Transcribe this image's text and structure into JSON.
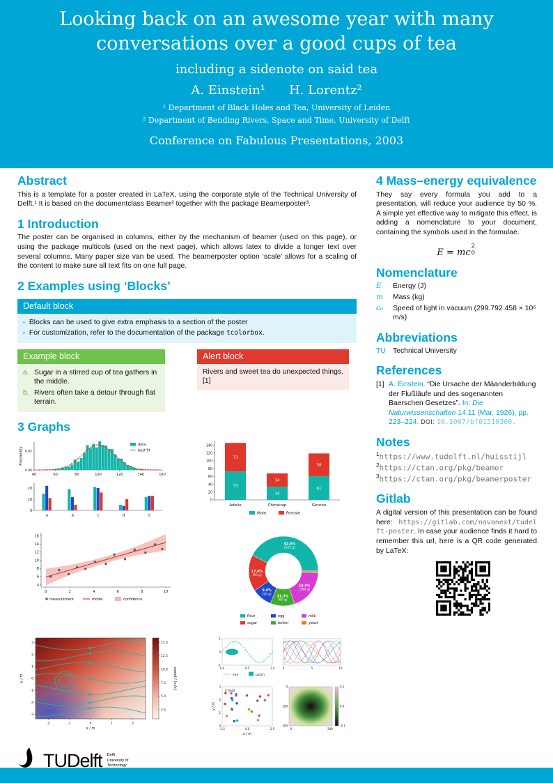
{
  "colors": {
    "accent": "#00A6D6",
    "green": "#6CC24A",
    "red": "#E0392E",
    "teal_plot": "#14B5A9",
    "blue_plot": "#2049C9",
    "red_plot": "#E0362C"
  },
  "header": {
    "title_line1": "Looking back on an awesome year with many",
    "title_line2": "conversations over a good cups of tea",
    "subtitle": "including a sidenote on said tea",
    "author1": "A. Einstein¹",
    "author2": "H. Lorentz²",
    "affiliation1": "¹ Department of Black Holes and Tea, University of Leiden",
    "affiliation2": "² Department of Bending Rivers, Space and Time, University of Delft",
    "conference": "Conference on Fabulous Presentations, 2003"
  },
  "sections": {
    "abstract": {
      "heading": "Abstract",
      "body": "This is a template for a poster created in LaTeX, using the corporate style of the Technical University of Delft.¹ It is based on the documentclass Beamer² together with the package Beamerposter³."
    },
    "introduction": {
      "heading": "1 Introduction",
      "body": "The poster can be organised in columns, either by the mechanism of beamer (used on this page), or using the package multicols (used on the next page), which allows latex to divide a longer text over several columns. Many paper size van be used. The beamerposter option ‘scale’ allows for a scaling of the content to make sure all text fits on one full page."
    },
    "blocks": {
      "heading": "2 Examples using ‘Blocks’",
      "default_block": {
        "title": "Default block",
        "item1": "Blocks can be used to give extra emphasis to a section of the poster",
        "item2_pre": "For customization, refer to the documentation of the package ",
        "item2_code": "tcolorbox",
        "item2_post": "."
      },
      "example_block": {
        "title": "Example block",
        "item_a_label": "a.",
        "item_a": "Sugar in a stirred cup of tea gathers in the middle.",
        "item_b_label": "b.",
        "item_b": "Rivers often take a detour through flat terrain."
      },
      "alert_block": {
        "title": "Alert block",
        "body": "Rivers and sweet tea do unexpected things.[1]"
      }
    },
    "graphs": {
      "heading": "3 Graphs"
    },
    "mass_energy": {
      "heading": "4 Mass–energy equivalence",
      "body": "They say every formula you add to a presentation, will reduce your audience by 50 %. A simple yet effective way to mitigate this effect, is adding a nomenclature to your document, containing the symbols used in the formulae.",
      "formula_lhs": "E = mc",
      "formula_sup": "2",
      "formula_sub": "0"
    },
    "nomenclature": {
      "heading": "Nomenclature",
      "rows": [
        {
          "symbol": "E",
          "desc": "Energy (J)"
        },
        {
          "symbol": "m",
          "desc": "Mass (kg)"
        },
        {
          "symbol": "c₀",
          "desc": "Speed of light in vacuum (299.792 458 × 10⁶ m/s)"
        }
      ]
    },
    "abbreviations": {
      "heading": "Abbreviations",
      "rows": [
        {
          "abbr": "TU",
          "desc": "Technical University"
        }
      ]
    },
    "references": {
      "heading": "References",
      "label": "[1]",
      "author": "A. Einstein.",
      "title": "“Die Ursache der Mäanderbildung der Flußläufe und des sogenannten Baerschen Gesetzes”.",
      "in_word": "In:",
      "journal": "Die Naturwissenschaften",
      "detail": "14.11 (Mar. 1926), pp. 223–224.",
      "doi_label": "DOI:",
      "doi": "10.1007/bf01510300."
    },
    "notes": {
      "heading": "Notes",
      "items": [
        {
          "sup": "1",
          "url": "https://www.tudelft.nl/huisstijl"
        },
        {
          "sup": "2",
          "url": "https://ctan.org/pkg/beamer"
        },
        {
          "sup": "3",
          "url": "https://ctan.org/pkg/beamerposter"
        }
      ]
    },
    "gitlab": {
      "heading": "Gitlab",
      "pre": "A digital version of this presentation can be found here: ",
      "url": "https://gitlab.com/novanext/tudelft-poster",
      "post": ". In case your audience finds it hard to remember this url, here is a QR code generated by LaTeX:"
    }
  },
  "logo": {
    "tu": "TU",
    "delft": "Delft",
    "sub1": "Delft",
    "sub2": "University of",
    "sub3": "Technology"
  },
  "chart_data": [
    {
      "id": "histogram",
      "type": "bar",
      "ylabel": "Probability",
      "xlim": [
        40,
        160
      ],
      "xticks": [
        40,
        60,
        80,
        100,
        120,
        140,
        160
      ],
      "yticks": [
        0.0,
        0.02
      ],
      "dist": {
        "mean": 100,
        "std": 15,
        "bins": 38
      },
      "legend": [
        "data",
        "best fit"
      ],
      "colors": {
        "data": "#14B5A9",
        "fit": "#D92B20"
      }
    },
    {
      "id": "grouped-bars",
      "type": "bar",
      "categories": [
        "a",
        "b",
        "c",
        "d",
        "e"
      ],
      "yticks": [
        0,
        10,
        20
      ],
      "series": [
        {
          "name": "teal",
          "color": "#14B5A9",
          "values": [
            15,
            19,
            21,
            5,
            12
          ]
        },
        {
          "name": "blue",
          "color": "#2049C9",
          "values": [
            22,
            12,
            20,
            4,
            13
          ]
        },
        {
          "name": "red",
          "color": "#E0362C",
          "values": [
            11,
            5,
            16,
            10,
            13
          ]
        }
      ]
    },
    {
      "id": "stacked-penguins",
      "type": "bar",
      "categories": [
        "Adelie",
        "Chinstrap",
        "Gentoo"
      ],
      "ylim": [
        0,
        150
      ],
      "yticks": [
        0,
        20,
        40,
        60,
        80,
        100,
        120,
        140
      ],
      "series": [
        {
          "name": "Male",
          "color": "#14B5A9",
          "values": [
            73,
            34,
            61
          ]
        },
        {
          "name": "Female",
          "color": "#E0362C",
          "values": [
            73,
            34,
            58
          ]
        }
      ]
    },
    {
      "id": "regression",
      "type": "scatter",
      "xticks": [
        0,
        2,
        4,
        6,
        8,
        10
      ],
      "yticks": [
        4,
        6,
        8,
        10,
        12,
        14,
        16
      ],
      "points": [
        [
          0.4,
          6.0
        ],
        [
          1.1,
          7.6
        ],
        [
          1.9,
          6.6
        ],
        [
          2.6,
          8.3
        ],
        [
          3.3,
          7.9
        ],
        [
          4.1,
          9.6
        ],
        [
          5.0,
          9.1
        ],
        [
          5.7,
          11.4
        ],
        [
          6.6,
          10.3
        ],
        [
          7.4,
          12.6
        ],
        [
          8.3,
          11.9
        ],
        [
          9.1,
          13.9
        ],
        [
          9.7,
          12.8
        ]
      ],
      "model": {
        "intercept": 5.9,
        "slope": 0.85
      },
      "legend": [
        "measurement",
        "model",
        "confidence"
      ]
    },
    {
      "id": "ingredients-donut",
      "type": "pie",
      "slices": [
        {
          "label": "flour",
          "grams": 225,
          "pct": 42.5,
          "color": "#14B5A9"
        },
        {
          "label": "sugar",
          "grams": 90,
          "pct": 17.0,
          "color": "#E0362C"
        },
        {
          "label": "egg",
          "grams": 50,
          "pct": 9.4,
          "color": "#2049C9"
        },
        {
          "label": "butter",
          "grams": 60,
          "pct": 11.3,
          "color": "#3FAE2A"
        },
        {
          "label": "milk",
          "grams": 100,
          "pct": 18.9,
          "color": "#D63BD6"
        },
        {
          "label": "yeast",
          "grams": 5,
          "pct": 0.9,
          "color": "#E8821E"
        }
      ]
    },
    {
      "id": "streamplot",
      "type": "heatmap",
      "xlabel": "x / m",
      "ylabel": "y / m",
      "xticks": [
        -2,
        -1,
        0,
        1,
        2
      ],
      "yticks": [
        -3,
        -2,
        -1,
        0,
        1,
        2,
        3
      ],
      "colorbar": {
        "label": "speed / (m/s)",
        "ticks": [
          2.5,
          5.0,
          7.5,
          10.0,
          12.5,
          15.0
        ]
      }
    },
    {
      "id": "small-multiples",
      "panels": [
        {
          "type": "line",
          "legend": [
            "line",
            "patch"
          ],
          "xticks": [
            "0.0",
            "0.5",
            "1.0"
          ],
          "yticks": [
            1,
            0,
            -1
          ]
        },
        {
          "type": "line",
          "xticks": [
            0,
            5,
            10
          ]
        },
        {
          "type": "scatter",
          "xlabel": "x / m",
          "ylabel": "y / m",
          "xticks": [
            "-2.5",
            "0.0",
            "2.5"
          ],
          "label": "v⃗ field"
        },
        {
          "type": "heatmap",
          "xticks": [
            0,
            200
          ],
          "yticks": [
            0,
            100,
            200
          ],
          "colorbar_ticks": [
            "0.1",
            "0.0",
            "-0.1"
          ]
        }
      ]
    }
  ]
}
